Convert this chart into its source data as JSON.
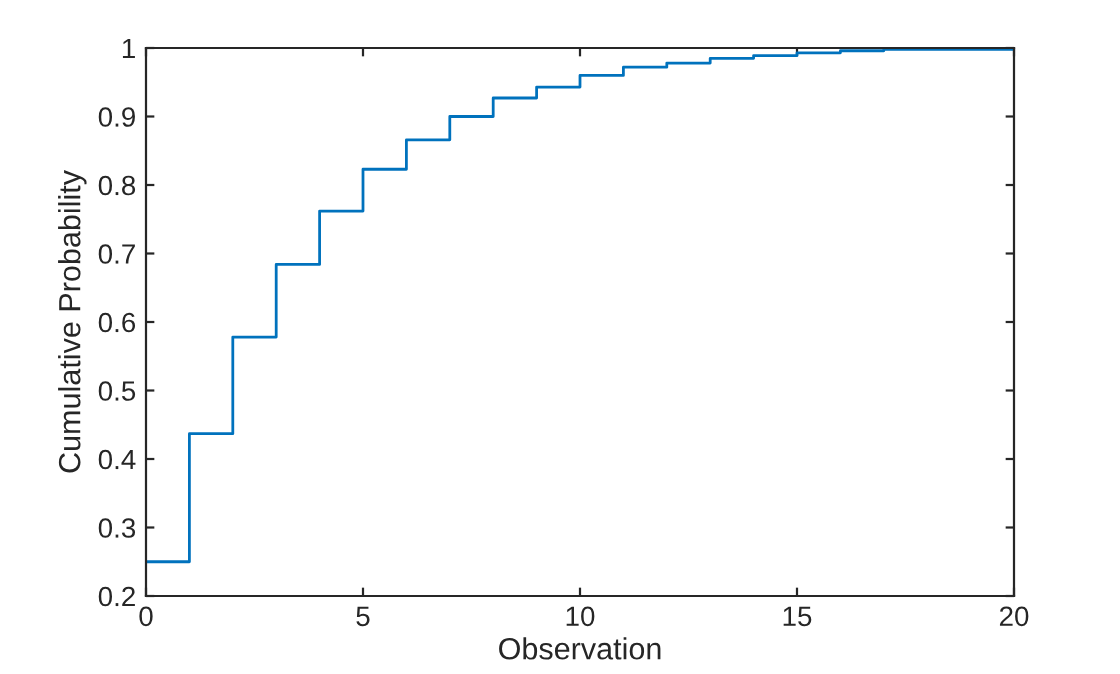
{
  "chart_data": {
    "type": "step",
    "xlabel": "Observation",
    "ylabel": "Cumulative Probability",
    "x": [
      0,
      1,
      2,
      3,
      4,
      5,
      6,
      7,
      8,
      9,
      10,
      11,
      12,
      13,
      14,
      15,
      16,
      17,
      18,
      19,
      20
    ],
    "series": [
      {
        "color": "#0072bd",
        "values": [
          0.25,
          0.437,
          0.578,
          0.684,
          0.762,
          0.823,
          0.866,
          0.9,
          0.927,
          0.943,
          0.96,
          0.972,
          0.978,
          0.985,
          0.989,
          0.993,
          0.996,
          0.998,
          0.998,
          0.998,
          0.998
        ]
      }
    ],
    "xlim": [
      0,
      20
    ],
    "xticks": [
      0,
      5,
      10,
      15,
      20
    ],
    "ylim": [
      0.2,
      1
    ],
    "yticks": [
      0.2,
      0.3,
      0.4,
      0.5,
      0.6,
      0.7,
      0.8,
      0.9,
      1
    ],
    "grid": false,
    "legend": false
  }
}
